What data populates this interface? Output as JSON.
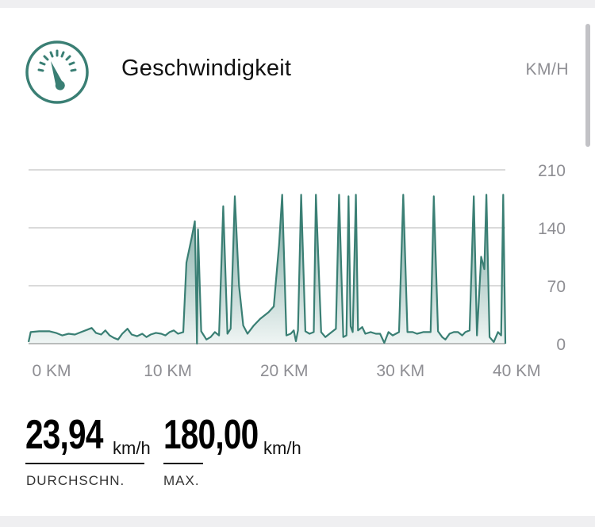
{
  "header": {
    "title": "Geschwindigkeit",
    "unit": "KM/H",
    "icon": "speedometer-icon",
    "accent": "#3a7f74"
  },
  "stats": {
    "average": {
      "value": "23,94",
      "unit": "km/h",
      "label": "DURCHSCHN."
    },
    "max": {
      "value": "180,00",
      "unit": "km/h",
      "label": "MAX."
    }
  },
  "chart_data": {
    "type": "area",
    "xlabel": "",
    "ylabel": "",
    "xlim": [
      0,
      41
    ],
    "ylim": [
      0,
      210
    ],
    "x_ticks": [
      0,
      10,
      20,
      30,
      40
    ],
    "x_tick_labels": [
      "0 KM",
      "10 KM",
      "20 KM",
      "30 KM",
      "40 KM"
    ],
    "y_ticks": [
      0,
      70,
      140,
      210
    ],
    "y_tick_labels": [
      "0",
      "70",
      "140",
      "210"
    ],
    "grid": true,
    "series_color": "#3a7f74",
    "points": [
      [
        0,
        2
      ],
      [
        0.2,
        14
      ],
      [
        1,
        15
      ],
      [
        2,
        15
      ],
      [
        2.6,
        13
      ],
      [
        3.2,
        10
      ],
      [
        3.8,
        12
      ],
      [
        4.4,
        11
      ],
      [
        5,
        14
      ],
      [
        5.6,
        17
      ],
      [
        6,
        19
      ],
      [
        6.4,
        13
      ],
      [
        6.9,
        11
      ],
      [
        7.3,
        16
      ],
      [
        7.7,
        10
      ],
      [
        8.1,
        7
      ],
      [
        8.5,
        5
      ],
      [
        8.9,
        12
      ],
      [
        9.4,
        18
      ],
      [
        9.8,
        11
      ],
      [
        10.3,
        9
      ],
      [
        10.8,
        12
      ],
      [
        11.2,
        8
      ],
      [
        11.6,
        11
      ],
      [
        12.1,
        13
      ],
      [
        12.6,
        12
      ],
      [
        13,
        10
      ],
      [
        13.4,
        14
      ],
      [
        13.8,
        16
      ],
      [
        14.2,
        12
      ],
      [
        14.7,
        14
      ],
      [
        15,
        98
      ],
      [
        15.5,
        128
      ],
      [
        15.8,
        148
      ],
      [
        16,
        0
      ],
      [
        16.1,
        138
      ],
      [
        16.4,
        15
      ],
      [
        16.9,
        5
      ],
      [
        17.3,
        8
      ],
      [
        17.7,
        14
      ],
      [
        18.1,
        10
      ],
      [
        18.5,
        166
      ],
      [
        18.9,
        12
      ],
      [
        19.2,
        18
      ],
      [
        19.6,
        178
      ],
      [
        20,
        70
      ],
      [
        20.4,
        22
      ],
      [
        20.8,
        12
      ],
      [
        21.4,
        22
      ],
      [
        22,
        30
      ],
      [
        22.8,
        38
      ],
      [
        23.3,
        45
      ],
      [
        23.8,
        120
      ],
      [
        24.1,
        180
      ],
      [
        24.5,
        10
      ],
      [
        24.9,
        12
      ],
      [
        25.2,
        16
      ],
      [
        25.4,
        3
      ],
      [
        25.6,
        16
      ],
      [
        25.9,
        180
      ],
      [
        26.3,
        15
      ],
      [
        26.7,
        12
      ],
      [
        27.1,
        14
      ],
      [
        27.3,
        180
      ],
      [
        27.8,
        14
      ],
      [
        28.2,
        8
      ],
      [
        28.7,
        13
      ],
      [
        29.2,
        18
      ],
      [
        29.5,
        180
      ],
      [
        29.9,
        8
      ],
      [
        30.2,
        10
      ],
      [
        30.4,
        178
      ],
      [
        30.6,
        21
      ],
      [
        30.8,
        14
      ],
      [
        31.1,
        180
      ],
      [
        31.3,
        16
      ],
      [
        31.7,
        20
      ],
      [
        32,
        12
      ],
      [
        32.5,
        14
      ],
      [
        33,
        12
      ],
      [
        33.4,
        12
      ],
      [
        33.8,
        1
      ],
      [
        34.2,
        14
      ],
      [
        34.6,
        10
      ],
      [
        35.2,
        14
      ],
      [
        35.6,
        180
      ],
      [
        36,
        14
      ],
      [
        36.5,
        14
      ],
      [
        36.9,
        12
      ],
      [
        37.5,
        14
      ],
      [
        38.2,
        14
      ],
      [
        38.5,
        178
      ],
      [
        38.9,
        15
      ],
      [
        39.3,
        8
      ],
      [
        39.6,
        5
      ],
      [
        40,
        12
      ],
      [
        40.4,
        14
      ],
      [
        40.8,
        14
      ],
      [
        41.2,
        10
      ],
      [
        41.5,
        14
      ],
      [
        41.9,
        16
      ],
      [
        42.3,
        178
      ],
      [
        42.6,
        10
      ],
      [
        43,
        105
      ],
      [
        43.3,
        90
      ],
      [
        43.5,
        180
      ],
      [
        43.8,
        8
      ],
      [
        44.2,
        2
      ],
      [
        44.6,
        14
      ],
      [
        44.9,
        10
      ],
      [
        45.1,
        180
      ],
      [
        45.3,
        0
      ]
    ]
  }
}
